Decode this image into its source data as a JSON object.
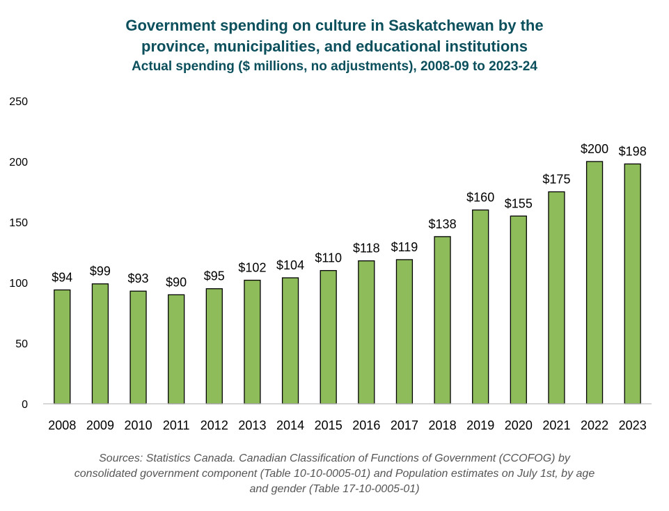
{
  "chart_data": {
    "type": "bar",
    "title_lines": [
      "Government spending on culture in Saskatchewan by the",
      "province, municipalities, and educational institutions"
    ],
    "subtitle": "Actual spending ($ millions, no adjustments), 2008-09 to 2023-24",
    "categories": [
      "2008",
      "2009",
      "2010",
      "2011",
      "2012",
      "2013",
      "2014",
      "2015",
      "2016",
      "2017",
      "2018",
      "2019",
      "2020",
      "2021",
      "2022",
      "2023"
    ],
    "values": [
      94,
      99,
      93,
      90,
      95,
      102,
      104,
      110,
      118,
      119,
      138,
      160,
      155,
      175,
      200,
      198
    ],
    "data_labels": [
      "$94",
      "$99",
      "$93",
      "$90",
      "$95",
      "$102",
      "$104",
      "$110",
      "$118",
      "$119",
      "$138",
      "$160",
      "$155",
      "$175",
      "$200",
      "$198"
    ],
    "y_ticks": [
      0,
      50,
      100,
      150,
      200,
      250
    ],
    "ylim": [
      0,
      250
    ],
    "xlabel": "",
    "ylabel": "",
    "grid": false,
    "bar_color": "#8fbc5a",
    "title_color": "#0b4f5c"
  },
  "source_lines": [
    "Sources: Statistics Canada. Canadian Classification of Functions of Government (CCOFOG) by",
    "consolidated government component (Table 10-10-0005-01) and Population estimates on July 1st, by age",
    "and gender (Table 17-10-0005-01)"
  ]
}
